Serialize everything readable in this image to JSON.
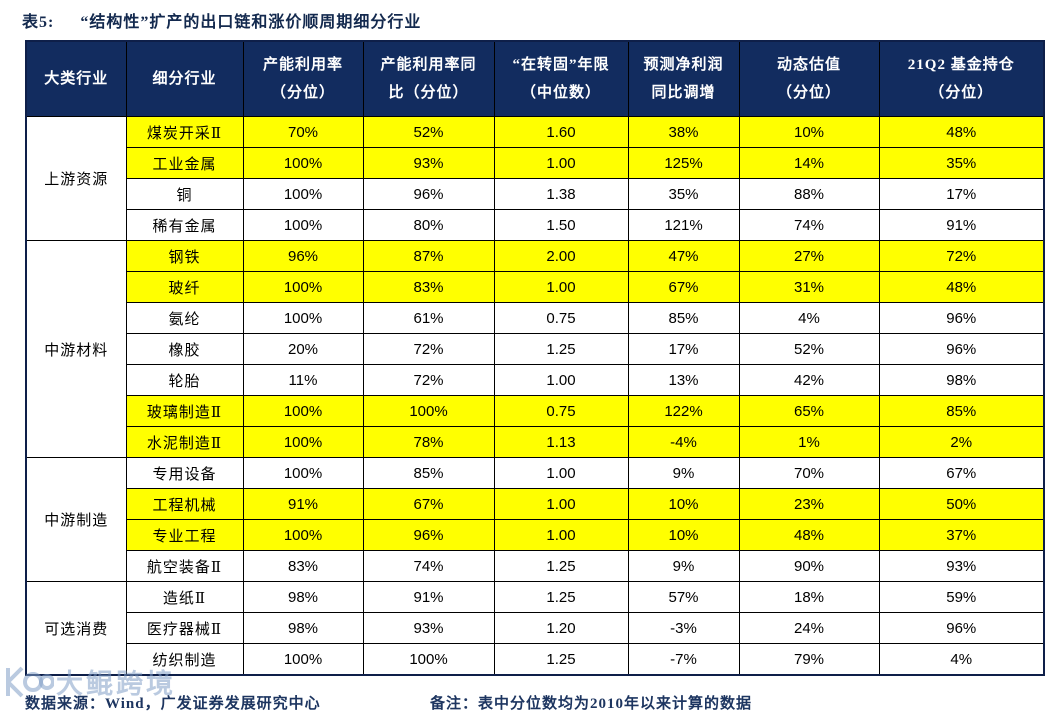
{
  "title": {
    "label": "表5:",
    "text": "“结构性”扩产的出口链和涨价顺周期细分行业"
  },
  "table": {
    "headers": [
      {
        "lines": [
          "大类行业"
        ]
      },
      {
        "lines": [
          "细分行业"
        ]
      },
      {
        "lines": [
          "产能利用率",
          "（分位）"
        ]
      },
      {
        "lines": [
          "产能利用率同",
          "比（分位）"
        ]
      },
      {
        "lines": [
          "“在转固”年限",
          "（中位数）"
        ]
      },
      {
        "lines": [
          "预测净利润",
          "同比调增"
        ]
      },
      {
        "lines": [
          "动态估值",
          "（分位）"
        ]
      },
      {
        "lines": [
          "21Q2 基金持仓",
          "（分位）"
        ]
      }
    ],
    "groups": [
      {
        "category": "上游资源",
        "rows": [
          {
            "industry": "煤炭开采Ⅱ",
            "values": [
              "70%",
              "52%",
              "1.60",
              "38%",
              "10%",
              "48%"
            ],
            "highlight": true
          },
          {
            "industry": "工业金属",
            "values": [
              "100%",
              "93%",
              "1.00",
              "125%",
              "14%",
              "35%"
            ],
            "highlight": true
          },
          {
            "industry": "铜",
            "values": [
              "100%",
              "96%",
              "1.38",
              "35%",
              "88%",
              "17%"
            ],
            "highlight": false
          },
          {
            "industry": "稀有金属",
            "values": [
              "100%",
              "80%",
              "1.50",
              "121%",
              "74%",
              "91%"
            ],
            "highlight": false
          }
        ]
      },
      {
        "category": "中游材料",
        "rows": [
          {
            "industry": "钢铁",
            "values": [
              "96%",
              "87%",
              "2.00",
              "47%",
              "27%",
              "72%"
            ],
            "highlight": true
          },
          {
            "industry": "玻纤",
            "values": [
              "100%",
              "83%",
              "1.00",
              "67%",
              "31%",
              "48%"
            ],
            "highlight": true
          },
          {
            "industry": "氨纶",
            "values": [
              "100%",
              "61%",
              "0.75",
              "85%",
              "4%",
              "96%"
            ],
            "highlight": false
          },
          {
            "industry": "橡胶",
            "values": [
              "20%",
              "72%",
              "1.25",
              "17%",
              "52%",
              "96%"
            ],
            "highlight": false
          },
          {
            "industry": "轮胎",
            "values": [
              "11%",
              "72%",
              "1.00",
              "13%",
              "42%",
              "98%"
            ],
            "highlight": false
          },
          {
            "industry": "玻璃制造Ⅱ",
            "values": [
              "100%",
              "100%",
              "0.75",
              "122%",
              "65%",
              "85%"
            ],
            "highlight": true
          },
          {
            "industry": "水泥制造Ⅱ",
            "values": [
              "100%",
              "78%",
              "1.13",
              "-4%",
              "1%",
              "2%"
            ],
            "highlight": true
          }
        ]
      },
      {
        "category": "中游制造",
        "rows": [
          {
            "industry": "专用设备",
            "values": [
              "100%",
              "85%",
              "1.00",
              "9%",
              "70%",
              "67%"
            ],
            "highlight": false
          },
          {
            "industry": "工程机械",
            "values": [
              "91%",
              "67%",
              "1.00",
              "10%",
              "23%",
              "50%"
            ],
            "highlight": true
          },
          {
            "industry": "专业工程",
            "values": [
              "100%",
              "96%",
              "1.00",
              "10%",
              "48%",
              "37%"
            ],
            "highlight": true
          },
          {
            "industry": "航空装备Ⅱ",
            "values": [
              "83%",
              "74%",
              "1.25",
              "9%",
              "90%",
              "93%"
            ],
            "highlight": false
          }
        ]
      },
      {
        "category": "可选消费",
        "rows": [
          {
            "industry": "造纸Ⅱ",
            "values": [
              "98%",
              "91%",
              "1.25",
              "57%",
              "18%",
              "59%"
            ],
            "highlight": false
          },
          {
            "industry": "医疗器械Ⅱ",
            "values": [
              "98%",
              "93%",
              "1.20",
              "-3%",
              "24%",
              "96%"
            ],
            "highlight": false
          },
          {
            "industry": "纺织制造",
            "values": [
              "100%",
              "100%",
              "1.25",
              "-7%",
              "79%",
              "4%"
            ],
            "highlight": false
          }
        ]
      }
    ]
  },
  "footer": {
    "source": "数据来源：Wind，广发证券发展研究中心",
    "note": "备注：表中分位数均为2010年以来计算的数据"
  },
  "watermark": {
    "text": "大鲲跨境"
  },
  "colors": {
    "header_bg": "#122c5f",
    "header_text": "#ffffff",
    "highlight": "#ffff00",
    "title_text": "#13294e",
    "footer_text": "#1d3560",
    "border": "#000000"
  }
}
